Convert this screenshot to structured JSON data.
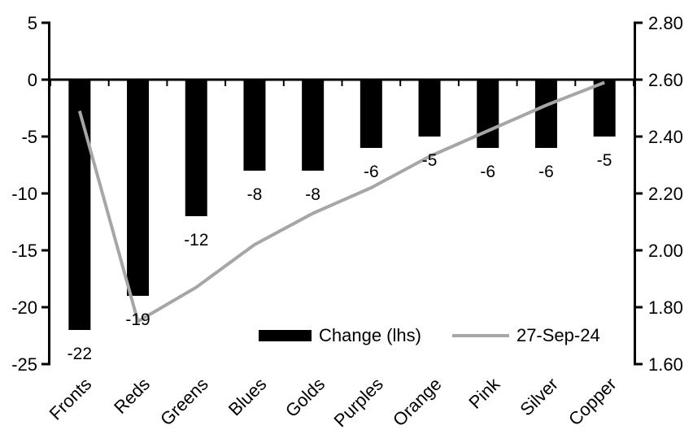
{
  "chart_data": {
    "type": "bar+line",
    "title": "",
    "categories": [
      "Fronts",
      "Reds",
      "Greens",
      "Blues",
      "Golds",
      "Purples",
      "Orange",
      "Pink",
      "Silver",
      "Copper"
    ],
    "series": [
      {
        "name": "Change (lhs)",
        "type": "bar",
        "axis": "left",
        "color": "#000000",
        "values": [
          -22,
          -19,
          -12,
          -8,
          -8,
          -6,
          -5,
          -6,
          -6,
          -5
        ],
        "data_labels": [
          "-22",
          "-19",
          "-12",
          "-8",
          "-8",
          "-6",
          "-5",
          "-6",
          "-6",
          "-5"
        ]
      },
      {
        "name": "27-Sep-24",
        "type": "line",
        "axis": "right",
        "color": "#a6a6a6",
        "values": [
          2.49,
          1.75,
          1.87,
          2.02,
          2.13,
          2.22,
          2.33,
          2.42,
          2.51,
          2.59
        ]
      }
    ],
    "left_axis": {
      "min": -25,
      "max": 5,
      "step": 5,
      "tick_labels": [
        "5",
        "0",
        "-5",
        "-10",
        "-15",
        "-20",
        "-25"
      ]
    },
    "right_axis": {
      "min": 1.6,
      "max": 2.8,
      "step": 0.2,
      "tick_labels": [
        "2.80",
        "2.60",
        "2.40",
        "2.20",
        "2.00",
        "1.80",
        "1.60"
      ]
    },
    "grid": false,
    "legend_position": "bottom-inside",
    "background_color": "#ffffff",
    "axis_color": "#000000",
    "x_label_rotation_deg": -45
  }
}
